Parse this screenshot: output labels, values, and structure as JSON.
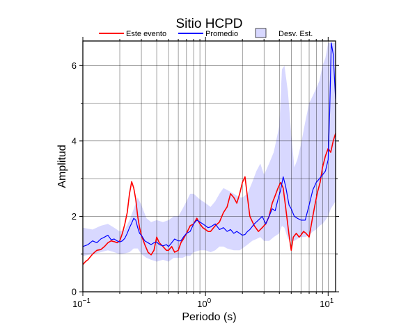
{
  "chart_data": {
    "type": "line",
    "title": "Sitio HCPD",
    "xlabel": "Periodo (s)",
    "ylabel": "Amplitud",
    "x_scale": "log",
    "xlim": [
      0.1,
      11.5
    ],
    "ylim": [
      0,
      6.65
    ],
    "x_ticks": [
      {
        "value": 0.1,
        "base": "10",
        "exp": "−1"
      },
      {
        "value": 1,
        "base": "10",
        "exp": "0"
      },
      {
        "value": 10,
        "base": "10",
        "exp": "1"
      }
    ],
    "y_ticks": [
      0,
      2,
      4,
      6
    ],
    "grid": true,
    "legend_position": "top",
    "series": [
      {
        "name": "Este evento",
        "color": "#ff0000",
        "x": [
          0.1,
          0.105,
          0.11,
          0.12,
          0.13,
          0.14,
          0.15,
          0.16,
          0.17,
          0.18,
          0.19,
          0.2,
          0.21,
          0.22,
          0.23,
          0.24,
          0.25,
          0.26,
          0.27,
          0.28,
          0.29,
          0.3,
          0.32,
          0.34,
          0.36,
          0.38,
          0.4,
          0.42,
          0.45,
          0.48,
          0.5,
          0.53,
          0.56,
          0.6,
          0.63,
          0.66,
          0.7,
          0.75,
          0.8,
          0.85,
          0.9,
          0.95,
          1.0,
          1.05,
          1.1,
          1.2,
          1.3,
          1.4,
          1.5,
          1.6,
          1.7,
          1.8,
          1.9,
          2.0,
          2.1,
          2.2,
          2.3,
          2.5,
          2.7,
          2.9,
          3.1,
          3.3,
          3.5,
          3.7,
          3.9,
          4.1,
          4.3,
          4.5,
          4.8,
          5.0,
          5.2,
          5.5,
          5.8,
          6.0,
          6.3,
          6.6,
          7.0,
          7.4,
          7.8,
          8.2,
          8.6,
          9.0,
          9.5,
          10.0,
          10.5,
          11.0,
          11.5
        ],
        "y": [
          0.72,
          0.8,
          0.85,
          1.0,
          1.1,
          1.12,
          1.2,
          1.3,
          1.35,
          1.33,
          1.3,
          1.35,
          1.55,
          1.8,
          2.1,
          2.6,
          2.92,
          2.75,
          2.45,
          2.0,
          1.7,
          1.5,
          1.25,
          1.05,
          0.98,
          1.1,
          1.45,
          1.3,
          1.2,
          1.1,
          1.1,
          1.2,
          1.05,
          1.1,
          1.3,
          1.4,
          1.55,
          1.75,
          1.8,
          1.95,
          1.8,
          1.7,
          1.65,
          1.6,
          1.6,
          1.75,
          1.85,
          2.1,
          2.25,
          2.6,
          2.5,
          2.35,
          2.6,
          2.9,
          3.05,
          2.5,
          2.0,
          1.75,
          1.6,
          1.7,
          1.8,
          2.0,
          2.35,
          2.55,
          2.75,
          2.9,
          2.75,
          2.25,
          1.5,
          1.1,
          1.45,
          1.55,
          1.45,
          1.5,
          1.6,
          1.55,
          1.45,
          1.9,
          2.3,
          2.65,
          2.9,
          3.3,
          3.6,
          3.8,
          3.7,
          4.0,
          4.2
        ]
      },
      {
        "name": "Promedio",
        "color": "#0000ff",
        "x": [
          0.1,
          0.11,
          0.12,
          0.13,
          0.14,
          0.15,
          0.16,
          0.17,
          0.18,
          0.19,
          0.2,
          0.21,
          0.22,
          0.23,
          0.24,
          0.25,
          0.26,
          0.27,
          0.28,
          0.29,
          0.3,
          0.32,
          0.34,
          0.36,
          0.38,
          0.4,
          0.42,
          0.45,
          0.48,
          0.5,
          0.53,
          0.56,
          0.6,
          0.63,
          0.66,
          0.7,
          0.75,
          0.8,
          0.85,
          0.9,
          0.95,
          1.0,
          1.05,
          1.1,
          1.2,
          1.3,
          1.4,
          1.5,
          1.6,
          1.7,
          1.8,
          1.9,
          2.0,
          2.1,
          2.2,
          2.3,
          2.5,
          2.7,
          2.9,
          3.1,
          3.3,
          3.5,
          3.7,
          3.9,
          4.1,
          4.3,
          4.5,
          4.8,
          5.0,
          5.3,
          5.6,
          6.0,
          6.5,
          7.0,
          7.5,
          8.0,
          8.5,
          9.0,
          9.5,
          10.0,
          10.3,
          10.6,
          11.0,
          11.5
        ],
        "y": [
          1.2,
          1.25,
          1.35,
          1.3,
          1.4,
          1.45,
          1.5,
          1.38,
          1.4,
          1.35,
          1.32,
          1.35,
          1.42,
          1.55,
          1.7,
          1.82,
          1.95,
          1.9,
          1.7,
          1.55,
          1.5,
          1.35,
          1.3,
          1.25,
          1.3,
          1.32,
          1.25,
          1.22,
          1.25,
          1.2,
          1.3,
          1.4,
          1.35,
          1.35,
          1.45,
          1.55,
          1.6,
          1.8,
          1.9,
          1.85,
          1.8,
          1.75,
          1.7,
          1.72,
          1.8,
          1.65,
          1.7,
          1.6,
          1.65,
          1.55,
          1.6,
          1.55,
          1.5,
          1.52,
          1.6,
          1.65,
          1.8,
          1.9,
          2.0,
          1.8,
          2.0,
          2.2,
          2.15,
          2.45,
          2.7,
          3.05,
          2.8,
          2.3,
          2.2,
          2.0,
          1.95,
          1.9,
          1.9,
          2.3,
          2.7,
          2.9,
          3.0,
          3.1,
          3.2,
          3.5,
          4.8,
          6.6,
          6.3,
          5.1
        ]
      }
    ],
    "band": {
      "name": "Desv. Est.",
      "fill": "#d8d8ff",
      "x": [
        0.1,
        0.12,
        0.14,
        0.16,
        0.18,
        0.2,
        0.22,
        0.24,
        0.26,
        0.28,
        0.3,
        0.33,
        0.36,
        0.4,
        0.45,
        0.5,
        0.55,
        0.6,
        0.65,
        0.7,
        0.75,
        0.8,
        0.9,
        1.0,
        1.1,
        1.2,
        1.3,
        1.4,
        1.5,
        1.7,
        1.9,
        2.0,
        2.2,
        2.4,
        2.6,
        2.8,
        3.0,
        3.3,
        3.6,
        4.0,
        4.2,
        4.4,
        4.7,
        5.0,
        5.3,
        5.6,
        6.0,
        6.5,
        7.0,
        7.5,
        8.0,
        8.5,
        9.0,
        9.5,
        10.0,
        10.5,
        11.0,
        11.5
      ],
      "upper": [
        1.7,
        1.65,
        1.75,
        1.8,
        1.7,
        1.6,
        1.65,
        1.9,
        2.2,
        2.5,
        2.3,
        1.95,
        1.85,
        1.9,
        1.85,
        1.9,
        2.0,
        2.0,
        2.2,
        2.4,
        2.6,
        2.6,
        2.45,
        2.35,
        2.25,
        2.4,
        2.6,
        2.75,
        2.7,
        2.6,
        2.5,
        2.5,
        2.6,
        2.9,
        3.2,
        3.4,
        3.1,
        3.4,
        3.7,
        4.4,
        5.9,
        6.0,
        5.3,
        4.2,
        3.3,
        3.5,
        3.9,
        4.5,
        5.0,
        5.2,
        5.4,
        5.6,
        6.0,
        6.2,
        6.6,
        6.6,
        6.6,
        6.6
      ],
      "lower": [
        0.95,
        1.0,
        1.05,
        1.1,
        1.05,
        1.0,
        1.02,
        1.05,
        1.15,
        1.15,
        1.0,
        0.9,
        0.85,
        0.8,
        0.85,
        0.8,
        0.9,
        0.9,
        0.9,
        0.95,
        0.95,
        1.05,
        1.1,
        1.1,
        1.05,
        1.1,
        1.2,
        1.2,
        1.15,
        1.1,
        1.1,
        1.15,
        1.25,
        1.35,
        1.4,
        1.45,
        1.35,
        1.35,
        1.45,
        1.55,
        1.75,
        1.7,
        1.4,
        1.35,
        1.35,
        1.4,
        1.45,
        1.45,
        1.5,
        1.6,
        1.65,
        1.75,
        1.8,
        1.9,
        2.0,
        2.2,
        2.3,
        2.4
      ]
    }
  }
}
